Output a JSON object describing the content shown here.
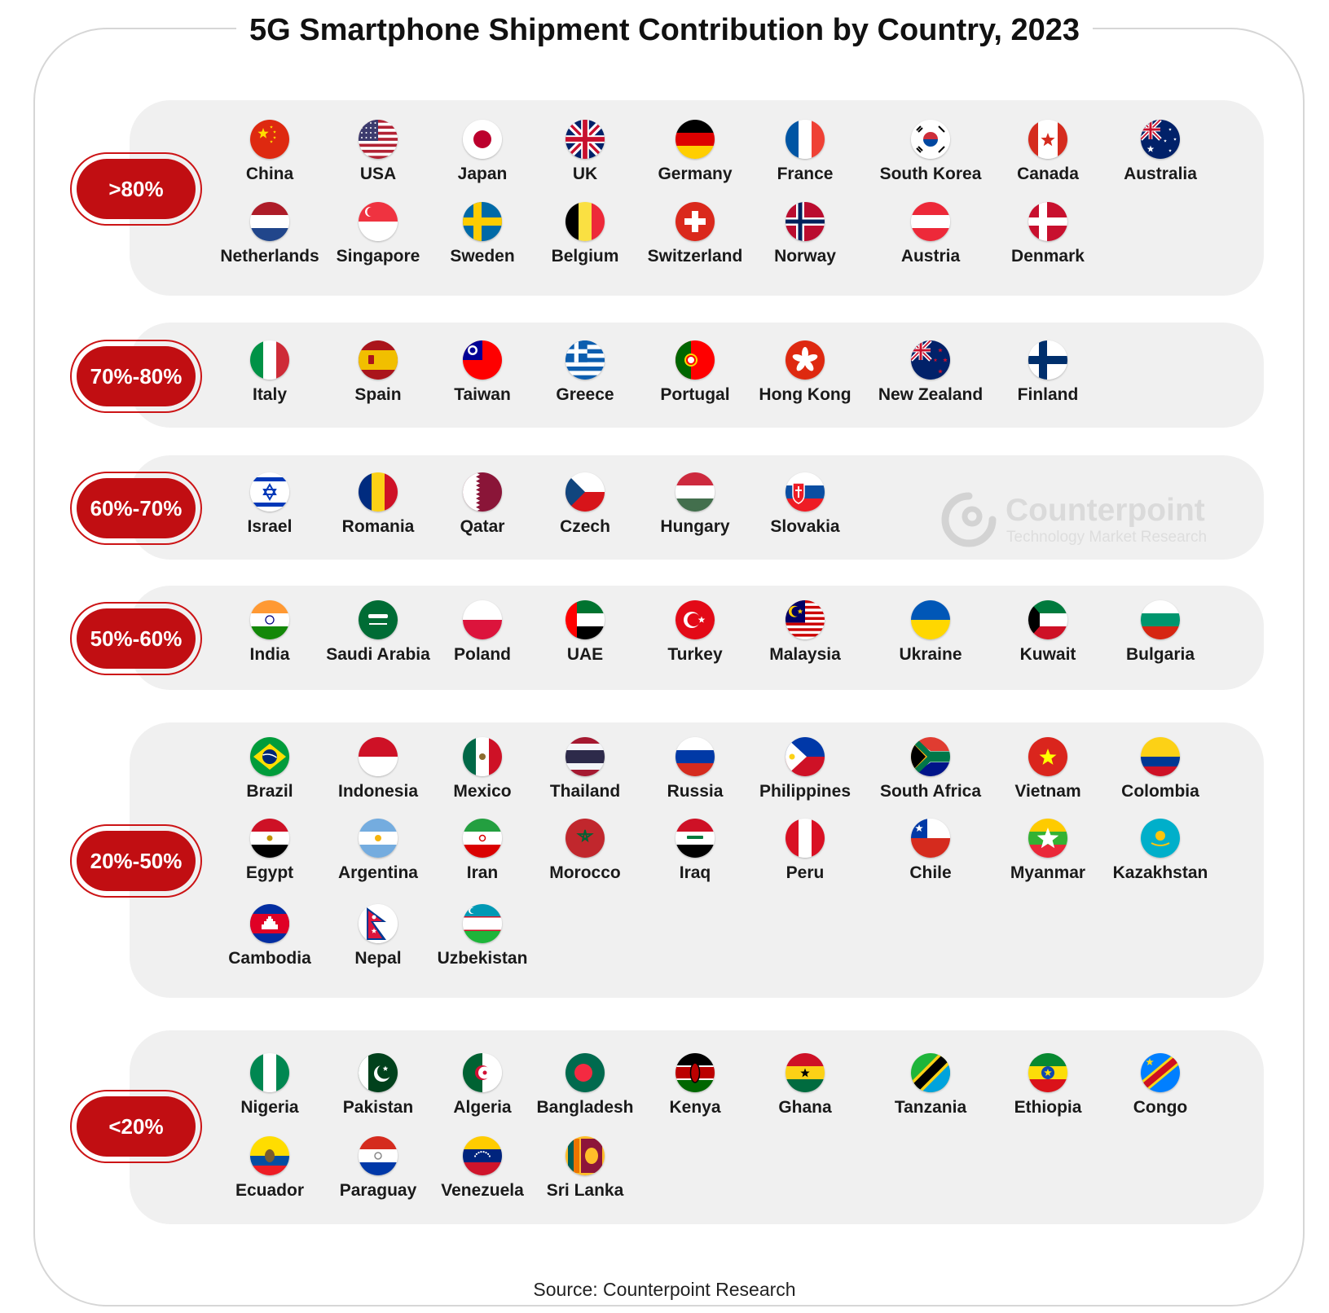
{
  "title": "5G Smartphone Shipment Contribution by Country, 2023",
  "source": "Source: Counterpoint Research",
  "watermark": {
    "brand": "Counterpoint",
    "tagline": "Technology Market Research"
  },
  "colors": {
    "badge": "#c10e12",
    "panel": "#f0f0f0"
  },
  "chart_data": {
    "type": "table",
    "title": "5G Smartphone Shipment Contribution by Country, 2023",
    "tiers": [
      {
        "label": ">80%",
        "countries": [
          {
            "name": "China",
            "flag": "china-flag-icon"
          },
          {
            "name": "USA",
            "flag": "usa-flag-icon"
          },
          {
            "name": "Japan",
            "flag": "japan-flag-icon"
          },
          {
            "name": "UK",
            "flag": "uk-flag-icon"
          },
          {
            "name": "Germany",
            "flag": "germany-flag-icon"
          },
          {
            "name": "France",
            "flag": "france-flag-icon"
          },
          {
            "name": "South Korea",
            "flag": "south-korea-flag-icon"
          },
          {
            "name": "Canada",
            "flag": "canada-flag-icon"
          },
          {
            "name": "Australia",
            "flag": "australia-flag-icon"
          },
          {
            "name": "Netherlands",
            "flag": "netherlands-flag-icon"
          },
          {
            "name": "Singapore",
            "flag": "singapore-flag-icon"
          },
          {
            "name": "Sweden",
            "flag": "sweden-flag-icon"
          },
          {
            "name": "Belgium",
            "flag": "belgium-flag-icon"
          },
          {
            "name": "Switzerland",
            "flag": "switzerland-flag-icon"
          },
          {
            "name": "Norway",
            "flag": "norway-flag-icon"
          },
          {
            "name": "Austria",
            "flag": "austria-flag-icon"
          },
          {
            "name": "Denmark",
            "flag": "denmark-flag-icon"
          }
        ]
      },
      {
        "label": "70%-80%",
        "countries": [
          {
            "name": "Italy",
            "flag": "italy-flag-icon"
          },
          {
            "name": "Spain",
            "flag": "spain-flag-icon"
          },
          {
            "name": "Taiwan",
            "flag": "taiwan-flag-icon"
          },
          {
            "name": "Greece",
            "flag": "greece-flag-icon"
          },
          {
            "name": "Portugal",
            "flag": "portugal-flag-icon"
          },
          {
            "name": "Hong Kong",
            "flag": "hong-kong-flag-icon"
          },
          {
            "name": "New Zealand",
            "flag": "new-zealand-flag-icon"
          },
          {
            "name": "Finland",
            "flag": "finland-flag-icon"
          }
        ]
      },
      {
        "label": "60%-70%",
        "countries": [
          {
            "name": "Israel",
            "flag": "israel-flag-icon"
          },
          {
            "name": "Romania",
            "flag": "romania-flag-icon"
          },
          {
            "name": "Qatar",
            "flag": "qatar-flag-icon"
          },
          {
            "name": "Czech",
            "flag": "czech-flag-icon"
          },
          {
            "name": "Hungary",
            "flag": "hungary-flag-icon"
          },
          {
            "name": "Slovakia",
            "flag": "slovakia-flag-icon"
          }
        ]
      },
      {
        "label": "50%-60%",
        "countries": [
          {
            "name": "India",
            "flag": "india-flag-icon"
          },
          {
            "name": "Saudi Arabia",
            "flag": "saudi-arabia-flag-icon"
          },
          {
            "name": "Poland",
            "flag": "poland-flag-icon"
          },
          {
            "name": "UAE",
            "flag": "uae-flag-icon"
          },
          {
            "name": "Turkey",
            "flag": "turkey-flag-icon"
          },
          {
            "name": "Malaysia",
            "flag": "malaysia-flag-icon"
          },
          {
            "name": "Ukraine",
            "flag": "ukraine-flag-icon"
          },
          {
            "name": "Kuwait",
            "flag": "kuwait-flag-icon"
          },
          {
            "name": "Bulgaria",
            "flag": "bulgaria-flag-icon"
          }
        ]
      },
      {
        "label": "20%-50%",
        "countries": [
          {
            "name": "Brazil",
            "flag": "brazil-flag-icon"
          },
          {
            "name": "Indonesia",
            "flag": "indonesia-flag-icon"
          },
          {
            "name": "Mexico",
            "flag": "mexico-flag-icon"
          },
          {
            "name": "Thailand",
            "flag": "thailand-flag-icon"
          },
          {
            "name": "Russia",
            "flag": "russia-flag-icon"
          },
          {
            "name": "Philippines",
            "flag": "philippines-flag-icon"
          },
          {
            "name": "South Africa",
            "flag": "south-africa-flag-icon"
          },
          {
            "name": "Vietnam",
            "flag": "vietnam-flag-icon"
          },
          {
            "name": "Colombia",
            "flag": "colombia-flag-icon"
          },
          {
            "name": "Egypt",
            "flag": "egypt-flag-icon"
          },
          {
            "name": "Argentina",
            "flag": "argentina-flag-icon"
          },
          {
            "name": "Iran",
            "flag": "iran-flag-icon"
          },
          {
            "name": "Morocco",
            "flag": "morocco-flag-icon"
          },
          {
            "name": "Iraq",
            "flag": "iraq-flag-icon"
          },
          {
            "name": "Peru",
            "flag": "peru-flag-icon"
          },
          {
            "name": "Chile",
            "flag": "chile-flag-icon"
          },
          {
            "name": "Myanmar",
            "flag": "myanmar-flag-icon"
          },
          {
            "name": "Kazakhstan",
            "flag": "kazakhstan-flag-icon"
          },
          {
            "name": "Cambodia",
            "flag": "cambodia-flag-icon"
          },
          {
            "name": "Nepal",
            "flag": "nepal-flag-icon"
          },
          {
            "name": "Uzbekistan",
            "flag": "uzbekistan-flag-icon"
          }
        ]
      },
      {
        "label": "<20%",
        "countries": [
          {
            "name": "Nigeria",
            "flag": "nigeria-flag-icon"
          },
          {
            "name": "Pakistan",
            "flag": "pakistan-flag-icon"
          },
          {
            "name": "Algeria",
            "flag": "algeria-flag-icon"
          },
          {
            "name": "Bangladesh",
            "flag": "bangladesh-flag-icon"
          },
          {
            "name": "Kenya",
            "flag": "kenya-flag-icon"
          },
          {
            "name": "Ghana",
            "flag": "ghana-flag-icon"
          },
          {
            "name": "Tanzania",
            "flag": "tanzania-flag-icon"
          },
          {
            "name": "Ethiopia",
            "flag": "ethiopia-flag-icon"
          },
          {
            "name": "Congo",
            "flag": "congo-flag-icon"
          },
          {
            "name": "Ecuador",
            "flag": "ecuador-flag-icon"
          },
          {
            "name": "Paraguay",
            "flag": "paraguay-flag-icon"
          },
          {
            "name": "Venezuela",
            "flag": "venezuela-flag-icon"
          },
          {
            "name": "Sri Lanka",
            "flag": "sri-lanka-flag-icon"
          }
        ]
      }
    ]
  }
}
